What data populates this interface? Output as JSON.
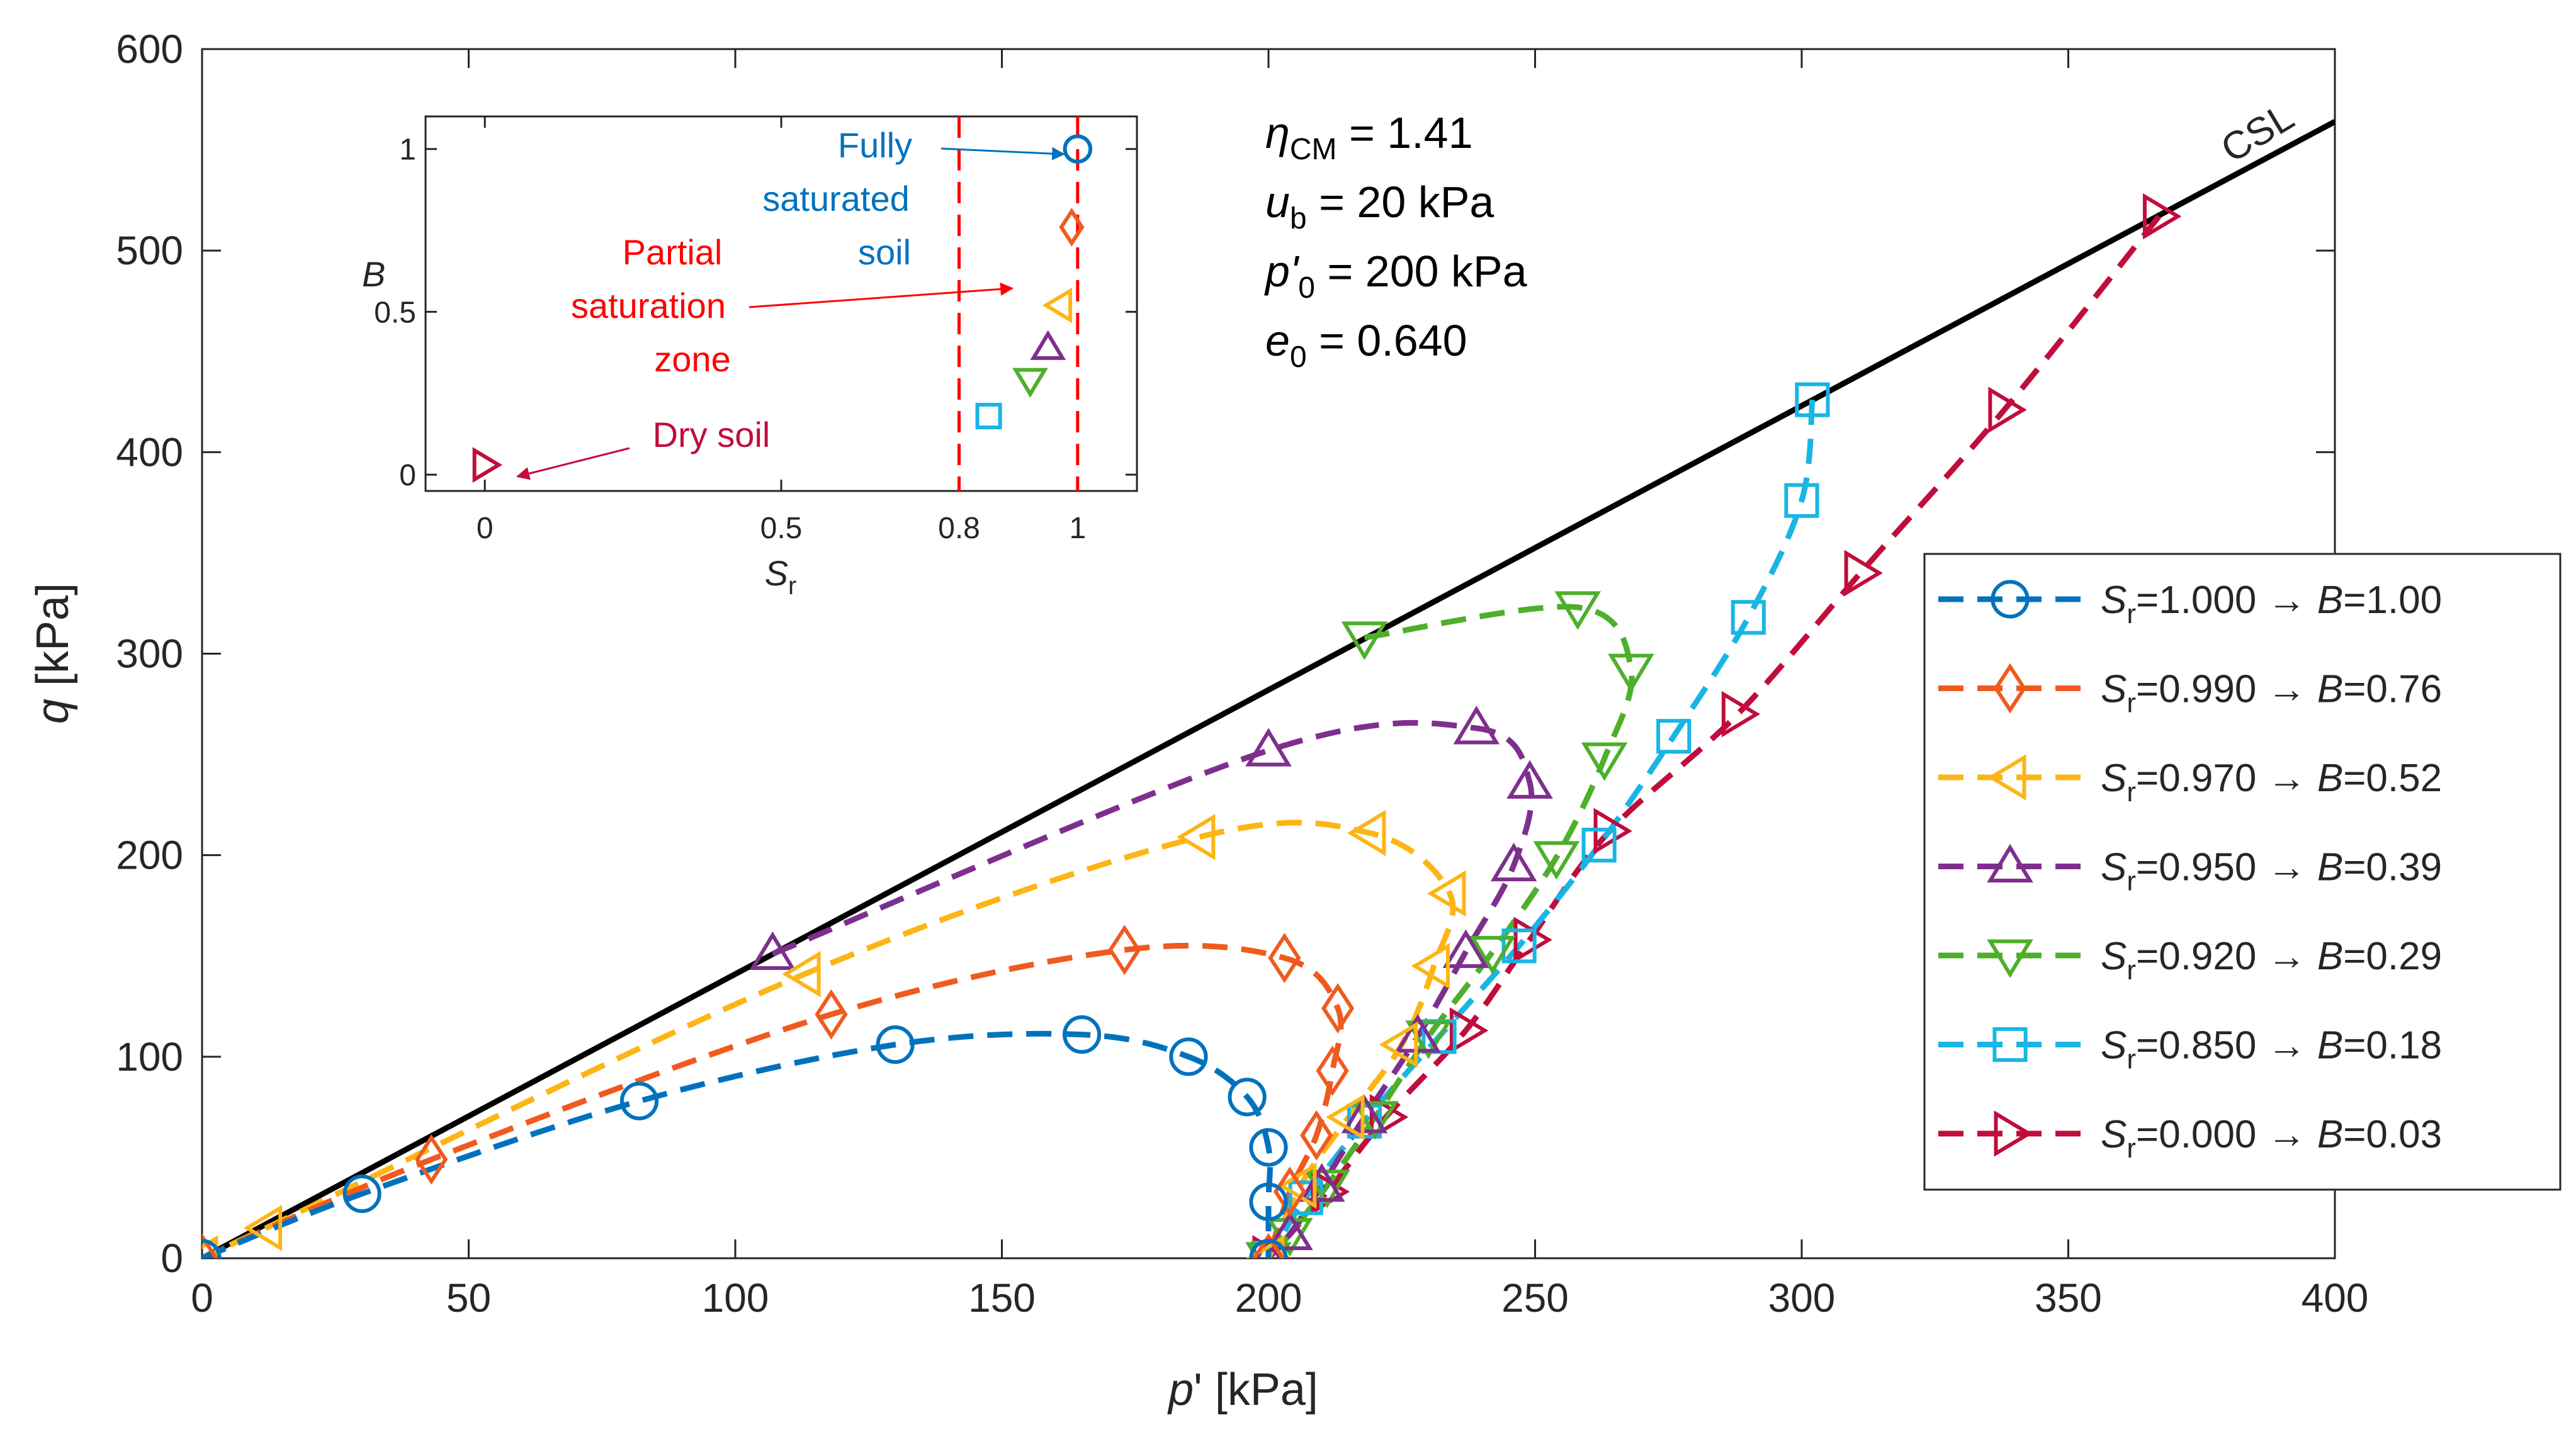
{
  "chart_data": [
    {
      "type": "line",
      "title": "",
      "xlabel": "p' [kPa]",
      "ylabel": "q [kPa]",
      "xlim": [
        0,
        400
      ],
      "ylim": [
        0,
        600
      ],
      "x_ticks": [
        0,
        50,
        100,
        150,
        200,
        250,
        300,
        350,
        400
      ],
      "y_ticks": [
        0,
        100,
        200,
        300,
        400,
        500,
        600
      ],
      "grid": false,
      "legend_position": "right",
      "parameters": {
        "eta_label": "η_CM = 1.41",
        "eta_sym": "η",
        "eta_sub": "CM",
        "eta_val": " = 1.41",
        "ub_sym": "u",
        "ub_sub": "b",
        "ub_val": " = 20 kPa",
        "p0_sym": "p'",
        "p0_sub": "0",
        "p0_val": " = 200 kPa",
        "e0_sym": "e",
        "e0_sub": "0",
        "e0_val": " = 0.640"
      },
      "csl": {
        "label": "CSL",
        "x": [
          0,
          400
        ],
        "y": [
          0,
          564
        ],
        "color": "#000000"
      },
      "series": [
        {
          "name": "Sr=1.000 → B=1.00",
          "sr": "=1.000",
          "b": "=1.00",
          "marker": "circle",
          "color": "#0072BD",
          "x": [
            0,
            30,
            82,
            130,
            165,
            185,
            196,
            200,
            200,
            200
          ],
          "y": [
            0,
            32,
            78,
            106,
            111,
            100,
            80,
            55,
            28,
            0
          ]
        },
        {
          "name": "Sr=0.990 → B=0.76",
          "sr": "=0.990",
          "b": "=0.76",
          "marker": "diamond",
          "color": "#F05A1E",
          "x": [
            0,
            43,
            118,
            173,
            203,
            213,
            212,
            209,
            204,
            200
          ],
          "y": [
            0,
            49,
            121,
            153,
            149,
            124,
            93,
            61,
            33,
            0
          ]
        },
        {
          "name": "Sr=0.970 → B=0.52",
          "sr": "=0.970",
          "b": "=0.52",
          "marker": "triangle-left",
          "color": "#FDB515",
          "x": [
            0,
            12,
            113,
            187,
            219,
            234,
            231,
            225,
            215,
            206,
            200
          ],
          "y": [
            0,
            15,
            141,
            209,
            211,
            181,
            145,
            106,
            70,
            36,
            0
          ]
        },
        {
          "name": "Sr=0.950 → B=0.39",
          "sr": "=0.950",
          "b": "=0.39",
          "marker": "triangle-up",
          "color": "#7E2F8E",
          "x": [
            107,
            200,
            239,
            249,
            246,
            237,
            228,
            218,
            210,
            204,
            200
          ],
          "y": [
            151,
            252,
            263,
            236,
            195,
            152,
            110,
            70,
            36,
            12,
            0
          ]
        },
        {
          "name": "Sr=0.920 → B=0.29",
          "sr": "=0.920",
          "b": "=0.29",
          "marker": "triangle-down",
          "color": "#4DAF2A",
          "x": [
            218,
            258,
            268,
            263,
            254,
            242,
            230,
            220,
            211,
            204,
            200
          ],
          "y": [
            308,
            323,
            292,
            248,
            199,
            152,
            110,
            70,
            36,
            12,
            0
          ]
        },
        {
          "name": "Sr=0.850 → B=0.18",
          "sr": "=0.850",
          "b": "=0.18",
          "marker": "square",
          "color": "#19B5E5",
          "x": [
            302,
            300,
            290,
            276,
            262,
            247,
            232,
            218,
            207,
            200
          ],
          "y": [
            426,
            376,
            318,
            259,
            205,
            155,
            110,
            68,
            30,
            0
          ]
        },
        {
          "name": "Sr=0.000 → B=0.03",
          "sr": "=0.000",
          "b": "=0.03",
          "marker": "triangle-right",
          "color": "#C00D3C",
          "x": [
            367,
            338,
            311,
            288,
            264,
            249,
            237,
            222,
            211,
            200
          ],
          "y": [
            517,
            421,
            340,
            270,
            212,
            158,
            113,
            70,
            33,
            0
          ]
        }
      ]
    },
    {
      "type": "scatter",
      "title": "",
      "xlabel": "Sr",
      "ylabel": "B",
      "xlim": [
        -0.1,
        1.1
      ],
      "ylim": [
        -0.05,
        1.1
      ],
      "x_ticks": [
        0,
        0.5,
        0.8,
        1
      ],
      "x_tick_labels": [
        "0",
        "0.5",
        "0.8",
        "1"
      ],
      "y_ticks": [
        0,
        0.5,
        1
      ],
      "y_tick_labels": [
        "0",
        "0.5",
        "1"
      ],
      "vlines": [
        0.8,
        1.0
      ],
      "vline_color": "#FF0000",
      "points": [
        {
          "marker": "circle",
          "color": "#0072BD",
          "x": 1.0,
          "y": 1.0
        },
        {
          "marker": "diamond",
          "color": "#F05A1E",
          "x": 0.99,
          "y": 0.76
        },
        {
          "marker": "triangle-left",
          "color": "#FDB515",
          "x": 0.97,
          "y": 0.52
        },
        {
          "marker": "triangle-up",
          "color": "#7E2F8E",
          "x": 0.95,
          "y": 0.39
        },
        {
          "marker": "triangle-down",
          "color": "#4DAF2A",
          "x": 0.92,
          "y": 0.29
        },
        {
          "marker": "square",
          "color": "#19B5E5",
          "x": 0.85,
          "y": 0.18
        },
        {
          "marker": "triangle-right",
          "color": "#C00D3C",
          "x": 0.0,
          "y": 0.03
        }
      ],
      "annotations": {
        "fully_line1": "Fully",
        "fully_line2": "saturated",
        "fully_line3": "soil",
        "fully_color": "#0072BD",
        "partial_line1": "Partial",
        "partial_line2": "saturation",
        "partial_line3": "zone",
        "partial_color": "#FF0000",
        "dry": "Dry soil",
        "dry_color": "#C00D3C"
      }
    }
  ]
}
